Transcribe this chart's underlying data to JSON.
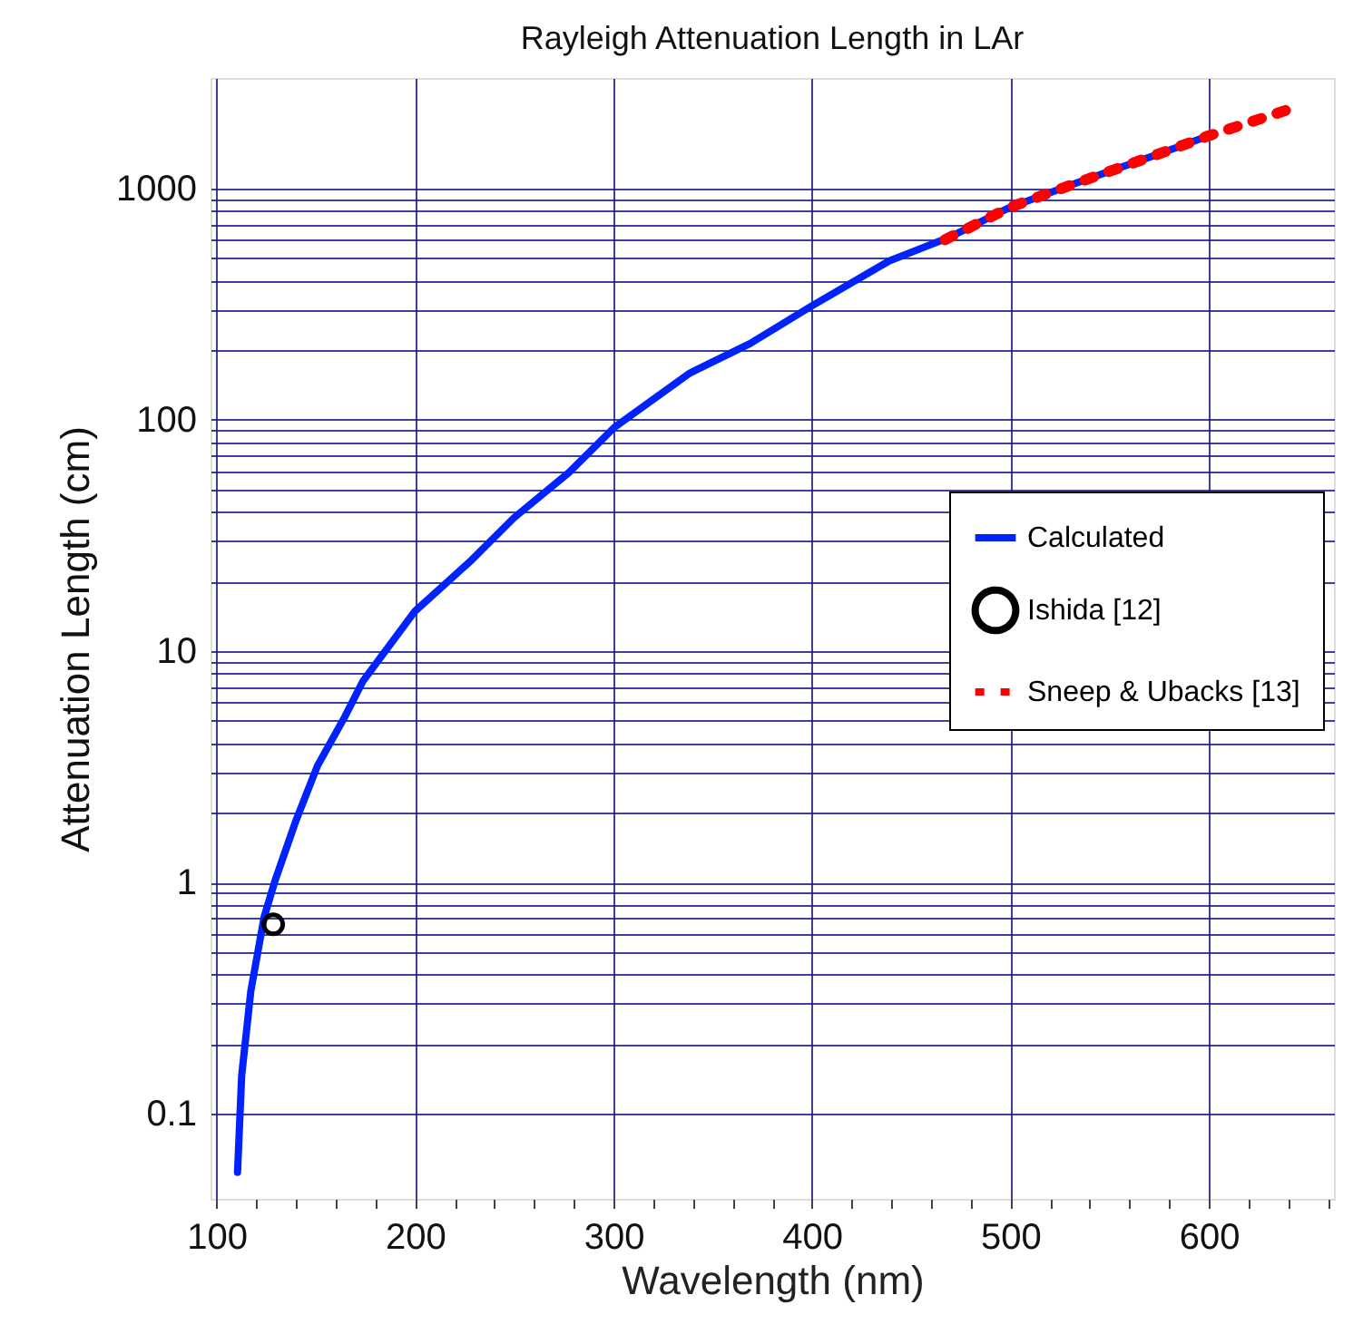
{
  "chart_data": {
    "type": "line",
    "title": "Rayleigh Attenuation Length in LAr",
    "xlabel": "Wavelength (nm)",
    "ylabel": "Attenuation Length (cm)",
    "log": "y",
    "grid": true,
    "legend": "right",
    "xlim": [
      97,
      663
    ],
    "xticks": [
      100,
      {
        "value": 120,
        "label": null
      },
      {
        "value": 140,
        "label": null
      },
      {
        "value": 160,
        "label": null
      },
      {
        "value": 180,
        "label": null
      },
      200,
      {
        "value": 220,
        "label": null
      },
      {
        "value": 240,
        "label": null
      },
      {
        "value": 260,
        "label": null
      },
      {
        "value": 280,
        "label": null
      },
      300,
      {
        "value": 320,
        "label": null
      },
      {
        "value": 340,
        "label": null
      },
      {
        "value": 360,
        "label": null
      },
      {
        "value": 380,
        "label": null
      },
      400,
      {
        "value": 420,
        "label": null
      },
      {
        "value": 440,
        "label": null
      },
      {
        "value": 460,
        "label": null
      },
      {
        "value": 480,
        "label": null
      },
      500,
      {
        "value": 520,
        "label": null
      },
      {
        "value": 540,
        "label": null
      },
      {
        "value": 560,
        "label": null
      },
      {
        "value": 580,
        "label": null
      },
      600,
      {
        "value": 620,
        "label": null
      },
      {
        "value": 640,
        "label": null
      },
      {
        "value": 660,
        "label": null
      }
    ],
    "ylim": [
      0.043,
      3000
    ],
    "yticks": [
      0.1,
      {
        "value": 0.2,
        "label": null
      },
      {
        "value": 0.3,
        "label": null
      },
      {
        "value": 0.4,
        "label": null
      },
      {
        "value": 0.5,
        "label": null
      },
      {
        "value": 0.6,
        "label": null
      },
      {
        "value": 0.7,
        "label": null
      },
      {
        "value": 0.8,
        "label": null
      },
      {
        "value": 0.9,
        "label": null
      },
      1,
      {
        "value": 2,
        "label": null
      },
      {
        "value": 3,
        "label": null
      },
      {
        "value": 4,
        "label": null
      },
      {
        "value": 5,
        "label": null
      },
      {
        "value": 6,
        "label": null
      },
      {
        "value": 7,
        "label": null
      },
      {
        "value": 8,
        "label": null
      },
      {
        "value": 9,
        "label": null
      },
      10,
      {
        "value": 20,
        "label": null
      },
      {
        "value": 30,
        "label": null
      },
      {
        "value": 40,
        "label": null
      },
      {
        "value": 50,
        "label": null
      },
      {
        "value": 60,
        "label": null
      },
      {
        "value": 70,
        "label": null
      },
      {
        "value": 80,
        "label": null
      },
      {
        "value": 90,
        "label": null
      },
      100,
      {
        "value": 200,
        "label": null
      },
      {
        "value": 300,
        "label": null
      },
      {
        "value": 400,
        "label": null
      },
      {
        "value": 500,
        "label": null
      },
      {
        "value": 600,
        "label": null
      },
      {
        "value": 700,
        "label": null
      },
      {
        "value": 800,
        "label": null
      },
      {
        "value": 900,
        "label": null
      },
      1000
    ],
    "series": [
      {
        "name": "Calculated",
        "color": "#0022ff",
        "line_style": "solid",
        "x": [
          110.6,
          112.7,
          117.3,
          124,
          129.5,
          140.2,
          150.9,
          164.6,
          173.7,
          200,
          228.6,
          250,
          277.4,
          300.6,
          338.4,
          369,
          399.5,
          438.9,
          469.4,
          500,
          533.6,
          576.4,
          599.2
        ],
        "values": [
          0.056,
          0.147,
          0.34,
          0.71,
          1.02,
          1.87,
          3.2,
          5.2,
          7.4,
          14.9,
          24.8,
          37.8,
          59,
          93,
          159,
          214,
          309,
          486,
          616,
          830,
          1057,
          1426,
          1680
        ]
      },
      {
        "name": "Ishida [12]",
        "type": "scatter",
        "color": "#000000",
        "marker": "circle",
        "x": [
          128.6
        ],
        "values": [
          0.66
        ]
      },
      {
        "name": "Sneep & Ubacks [13]",
        "color": "#ff0000",
        "line_style": "dashed",
        "x": [
          467,
          500,
          533.6,
          576.4,
          599.2,
          620.5,
          643.4
        ],
        "values": [
          600,
          830,
          1057,
          1426,
          1680,
          1930,
          2240
        ]
      }
    ]
  }
}
